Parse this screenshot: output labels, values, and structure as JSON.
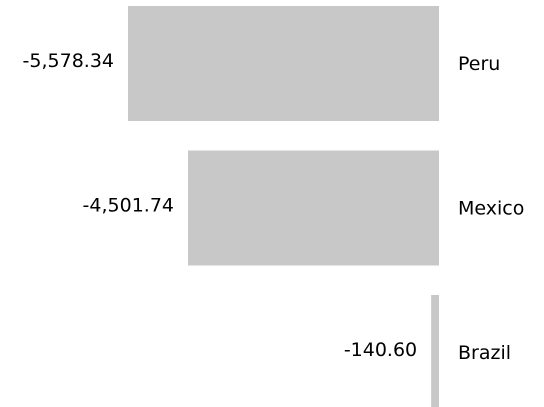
{
  "chart_data": {
    "type": "bar",
    "orientation": "horizontal",
    "categories": [
      "Peru",
      "Mexico",
      "Brazil"
    ],
    "values": [
      -5578.34,
      -4501.74,
      -140.6
    ],
    "value_labels": [
      "-5,578.34",
      "-4,501.74",
      "-140.60"
    ],
    "color": "#c8c8c8"
  }
}
